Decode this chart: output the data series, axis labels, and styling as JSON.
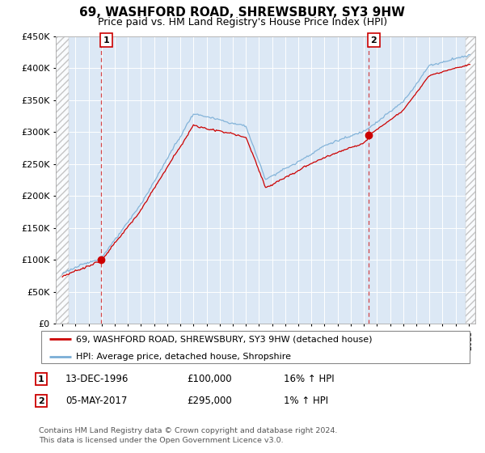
{
  "title": "69, WASHFORD ROAD, SHREWSBURY, SY3 9HW",
  "subtitle": "Price paid vs. HM Land Registry's House Price Index (HPI)",
  "legend_line1": "69, WASHFORD ROAD, SHREWSBURY, SY3 9HW (detached house)",
  "legend_line2": "HPI: Average price, detached house, Shropshire",
  "transaction1_date": "13-DEC-1996",
  "transaction1_price": 100000,
  "transaction1_hpi": "16% ↑ HPI",
  "transaction1_x": 1996.96,
  "transaction2_date": "05-MAY-2017",
  "transaction2_price": 295000,
  "transaction2_hpi": "1% ↑ HPI",
  "transaction2_x": 2017.37,
  "footer_line1": "Contains HM Land Registry data © Crown copyright and database right 2024.",
  "footer_line2": "This data is licensed under the Open Government Licence v3.0.",
  "red_color": "#cc0000",
  "blue_color": "#7aaed6",
  "bg_color": "#dce8f5",
  "grid_color": "#ffffff",
  "ylim": [
    0,
    450000
  ],
  "xlim_start": 1993.5,
  "xlim_end": 2025.5,
  "hatch_left_end": 1994.5,
  "hatch_right_start": 2024.75
}
